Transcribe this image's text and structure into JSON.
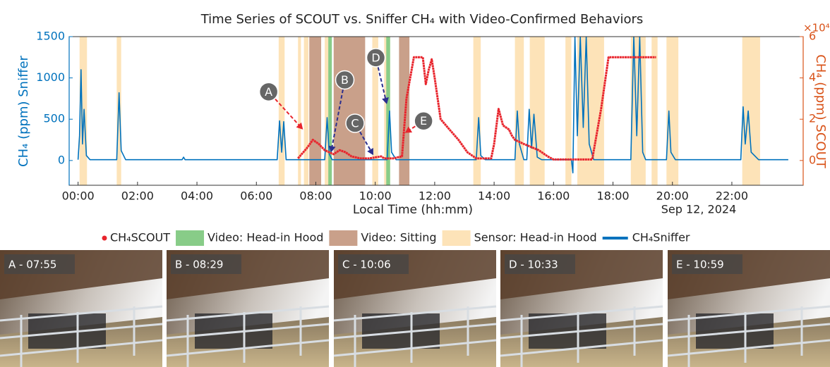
{
  "chart_data": {
    "type": "line",
    "title": "Time Series of SCOUT vs. Sniffer CH₄ with Video-Confirmed Behaviors",
    "subtitle": "Sep 12, 2024",
    "xlabel": "Local Time (hh:mm)",
    "ylabel": "CH₄ (ppm) Sniffer",
    "y2label": "CH₄ (ppm) SCOUT",
    "y2_exponent": "×10⁴",
    "xlim": [
      -0.3,
      24.4
    ],
    "xticks": [
      {
        "value": 0,
        "label": "00:00"
      },
      {
        "value": 2,
        "label": "02:00"
      },
      {
        "value": 4,
        "label": "04:00"
      },
      {
        "value": 6,
        "label": "06:00"
      },
      {
        "value": 8,
        "label": "08:00"
      },
      {
        "value": 10,
        "label": "10:00"
      },
      {
        "value": 12,
        "label": "12:00"
      },
      {
        "value": 14,
        "label": "14:00"
      },
      {
        "value": 16,
        "label": "16:00"
      },
      {
        "value": 18,
        "label": "18:00"
      },
      {
        "value": 20,
        "label": "20:00"
      },
      {
        "value": 22,
        "label": "22:00"
      }
    ],
    "ylim": [
      -300,
      1500
    ],
    "yticks": [
      0,
      500,
      1000,
      1500
    ],
    "y2lim": [
      -1.2,
      6
    ],
    "y2ticks": [
      0,
      2,
      4,
      6
    ],
    "ycolor": "#0072bd",
    "y2color": "#d95319",
    "series": [
      {
        "name": "CH₄SCOUT",
        "color": "#e8242c",
        "axis": "y2",
        "x": [
          7.4,
          7.7,
          7.9,
          8.1,
          8.3,
          8.6,
          8.8,
          9.0,
          9.2,
          9.5,
          9.8,
          10.2,
          10.3,
          10.6,
          10.9,
          11.05,
          11.2,
          11.3,
          11.6,
          11.7,
          11.8,
          11.9,
          12.0,
          12.2,
          12.5,
          12.8,
          13.1,
          13.4,
          13.9,
          14.0,
          14.15,
          14.3,
          14.5,
          14.6,
          14.7,
          15.0,
          15.5,
          15.8,
          16.0,
          17.3,
          17.6,
          17.85,
          19.45
        ],
        "values": [
          0.1,
          0.6,
          1.0,
          0.8,
          0.5,
          0.3,
          0.5,
          0.4,
          0.2,
          0.1,
          0.1,
          0.2,
          0.1,
          0.1,
          0.2,
          3.0,
          4.2,
          5.0,
          5.0,
          3.7,
          4.4,
          4.9,
          4.0,
          2.0,
          1.5,
          1.0,
          0.4,
          0.1,
          0.1,
          0.8,
          2.5,
          1.7,
          1.5,
          1.2,
          1.0,
          0.8,
          0.5,
          0.2,
          0.05,
          0.05,
          2.5,
          5.0,
          5.0
        ]
      },
      {
        "name": "CH₄Sniffer",
        "color": "#0072bd",
        "axis": "y",
        "x": [
          0,
          0.05,
          0.1,
          0.15,
          0.2,
          0.28,
          0.4,
          1.3,
          1.38,
          1.45,
          1.6,
          3.5,
          3.55,
          3.6,
          6.7,
          6.78,
          6.85,
          6.92,
          7.0,
          8.3,
          8.38,
          8.45,
          8.55,
          10.4,
          10.48,
          10.55,
          10.7,
          13.4,
          13.48,
          13.55,
          13.7,
          14.7,
          14.78,
          14.85,
          15.0,
          15.1,
          15.18,
          15.26,
          15.34,
          15.45,
          15.6,
          16.6,
          16.65,
          16.72,
          16.8,
          16.9,
          17.0,
          17.1,
          17.2,
          17.35,
          18.6,
          18.7,
          18.8,
          18.9,
          19.0,
          19.1,
          19.8,
          19.88,
          19.95,
          20.1,
          22.3,
          22.38,
          22.45,
          22.55,
          22.65,
          22.9,
          23.9
        ],
        "values": [
          10,
          300,
          1100,
          200,
          620,
          60,
          10,
          10,
          820,
          120,
          10,
          10,
          40,
          10,
          10,
          480,
          100,
          470,
          10,
          10,
          520,
          80,
          10,
          10,
          600,
          100,
          10,
          10,
          520,
          60,
          10,
          10,
          600,
          200,
          10,
          10,
          620,
          150,
          560,
          40,
          10,
          10,
          -150,
          1500,
          300,
          1500,
          400,
          1500,
          200,
          10,
          10,
          1500,
          300,
          1500,
          100,
          10,
          10,
          600,
          100,
          10,
          10,
          650,
          200,
          600,
          100,
          10,
          10
        ]
      }
    ],
    "regions": [
      {
        "name": "Video: Head-in Hood",
        "color": "#88cc88",
        "intervals": [
          [
            8.42,
            8.54
          ],
          [
            10.37,
            10.5
          ]
        ]
      },
      {
        "name": "Video: Sitting",
        "color": "#c9a08a",
        "intervals": [
          [
            7.78,
            8.18
          ],
          [
            8.6,
            9.66
          ],
          [
            10.8,
            11.15
          ]
        ]
      },
      {
        "name": "Sensor: Head-in Hood",
        "color": "#fde3b8",
        "intervals": [
          [
            0.05,
            0.3
          ],
          [
            1.3,
            1.45
          ],
          [
            6.75,
            6.95
          ],
          [
            7.4,
            7.5
          ],
          [
            7.6,
            7.75
          ],
          [
            8.3,
            8.45
          ],
          [
            9.9,
            10.1
          ],
          [
            10.3,
            10.5
          ],
          [
            10.9,
            11.0
          ],
          [
            13.3,
            13.55
          ],
          [
            14.7,
            15.0
          ],
          [
            15.2,
            15.7
          ],
          [
            16.4,
            16.6
          ],
          [
            16.8,
            17.7
          ],
          [
            18.6,
            19.1
          ],
          [
            19.3,
            19.5
          ],
          [
            19.8,
            20.2
          ],
          [
            22.35,
            22.95
          ]
        ]
      }
    ],
    "annotations": [
      {
        "label": "A",
        "x": 7.6,
        "y": 1.45,
        "axis": "y2",
        "color": "#e8242c"
      },
      {
        "label": "B",
        "x": 8.5,
        "y": 80,
        "axis": "y",
        "color": "#2b2f8f"
      },
      {
        "label": "C",
        "x": 9.96,
        "y": 50,
        "axis": "y",
        "color": "#2b2f8f"
      },
      {
        "label": "D",
        "x": 10.4,
        "y": 665,
        "axis": "y",
        "color": "#2b2f8f"
      },
      {
        "label": "E",
        "x": 10.96,
        "y": 1.3,
        "axis": "y2",
        "color": "#e8242c"
      }
    ]
  },
  "photos": [
    {
      "label": "A - 07:55"
    },
    {
      "label": "B - 08:29"
    },
    {
      "label": "C - 10:06"
    },
    {
      "label": "D - 10:33"
    },
    {
      "label": "E - 10:59"
    }
  ]
}
